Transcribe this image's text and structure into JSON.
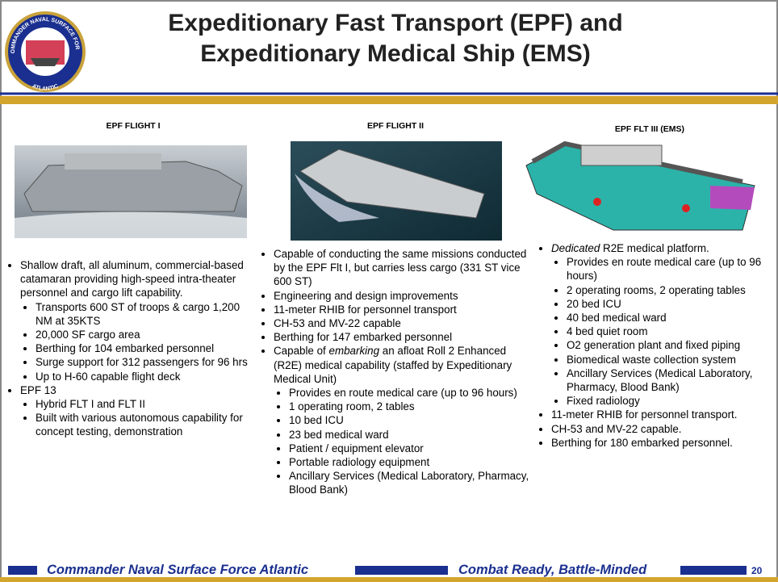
{
  "header": {
    "title_lines": [
      "Expeditionary Fast Transport (EPF) and",
      "Expeditionary Medical Ship (EMS)"
    ],
    "logo": {
      "top_text": "COMMANDER NAVAL SURFACE FORCE",
      "bottom_text": "ATLANTIC"
    }
  },
  "columns": [
    {
      "heading": "EPF FLIGHT I",
      "bullets": [
        {
          "text": "Shallow draft, all aluminum, commercial-based catamaran providing high-speed intra-theater personnel and cargo lift capability.",
          "sub": [
            "Transports 600 ST of troops & cargo 1,200 NM at 35KTS",
            "20,000 SF cargo area",
            "Berthing for 104 embarked personnel",
            "Surge support for 312 passengers for 96 hrs",
            "Up to H-60 capable flight deck"
          ]
        },
        {
          "text": "EPF 13",
          "sub": [
            "Hybrid FLT I and FLT II",
            "Built with various autonomous capability for concept testing, demonstration"
          ]
        }
      ]
    },
    {
      "heading": "EPF FLIGHT II",
      "bullets": [
        {
          "text": "Capable of conducting the same missions conducted by the EPF Flt I, but carries less cargo (331 ST vice 600 ST)"
        },
        {
          "text": "Engineering and design improvements"
        },
        {
          "text": "11-meter RHIB for personnel transport"
        },
        {
          "text": "CH-53 and MV-22 capable"
        },
        {
          "text": "Berthing for 147 embarked personnel"
        },
        {
          "text": "Capable of ",
          "em": "embarking",
          "post": " an afloat Roll 2 Enhanced (R2E) medical capability (staffed by Expeditionary Medical Unit)",
          "sub": [
            "Provides en route medical care (up to 96 hours)",
            "1 operating room, 2 tables",
            "10 bed ICU",
            "23 bed medical ward",
            "Patient / equipment elevator",
            "Portable radiology equipment",
            "Ancillary Services (Medical Laboratory, Pharmacy, Blood Bank)"
          ]
        }
      ]
    },
    {
      "heading": "EPF FLT III (EMS)",
      "bullets": [
        {
          "em": "Dedicated",
          "post": " R2E medical platform.",
          "sub": [
            "Provides en route medical care (up to 96 hours)",
            "2 operating rooms, 2 operating tables",
            "20 bed ICU",
            "40 bed medical ward",
            "4 bed quiet room",
            "O2 generation plant and fixed piping",
            "Biomedical waste collection system",
            "Ancillary Services (Medical Laboratory, Pharmacy, Blood Bank)",
            "Fixed radiology"
          ]
        },
        {
          "text": "11-meter RHIB for personnel transport."
        },
        {
          "text": "CH-53 and MV-22 capable."
        },
        {
          "text": "Berthing for 180 embarked personnel."
        }
      ]
    }
  ],
  "footer": {
    "left": "Commander Naval Surface Force Atlantic",
    "middle": "Combat Ready, Battle-Minded",
    "page": "20"
  }
}
